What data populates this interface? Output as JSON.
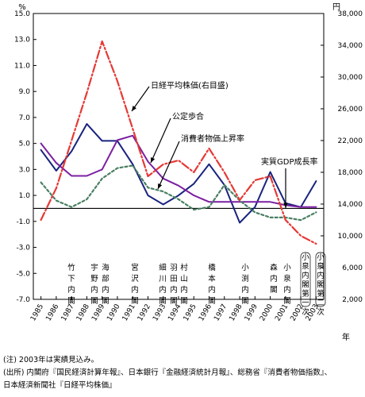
{
  "chart_data": {
    "type": "line",
    "left_unit": "%",
    "right_unit": "円",
    "x_suffix": "年",
    "x": [
      "1985",
      "1986",
      "1987",
      "1988",
      "1989",
      "1990",
      "1991",
      "1992",
      "1993",
      "1994",
      "1995",
      "1996",
      "1997",
      "1998",
      "1999",
      "2000",
      "2001",
      "2002",
      "2003"
    ],
    "left_axis": {
      "ylim": [
        -7.0,
        15.0
      ],
      "ticks": [
        "15.0",
        "13.0",
        "11.0",
        "9.0",
        "7.0",
        "5.0",
        "3.0",
        "1.0",
        "-1.0",
        "-3.0",
        "-5.0",
        "-7.0"
      ]
    },
    "right_axis": {
      "ylim": [
        2000,
        38000
      ],
      "ticks": [
        "38,000",
        "34,000",
        "30,000",
        "26,000",
        "22,000",
        "18,000",
        "14,000",
        "10,000",
        "6,000",
        "2,000"
      ]
    },
    "series": [
      {
        "name": "実質GDP成長率",
        "axis": "left",
        "color": "#1a237e",
        "style": "solid",
        "values": [
          4.5,
          2.9,
          4.4,
          6.5,
          5.2,
          5.2,
          3.4,
          1.0,
          0.3,
          1.0,
          1.9,
          3.4,
          1.8,
          -1.1,
          0.1,
          2.8,
          0.4,
          0.1,
          2.1
        ]
      },
      {
        "name": "公定歩合",
        "axis": "left",
        "color": "#7b1fa2",
        "style": "solid",
        "values": [
          5.0,
          3.5,
          2.5,
          2.5,
          3.0,
          5.25,
          5.6,
          3.6,
          2.3,
          1.75,
          1.0,
          0.5,
          0.5,
          0.5,
          0.5,
          0.5,
          0.25,
          0.1,
          0.1
        ]
      },
      {
        "name": "消費者物価上昇率",
        "axis": "left",
        "color": "#4a7f63",
        "style": "dotted",
        "values": [
          2.0,
          0.6,
          0.1,
          0.7,
          2.3,
          3.1,
          3.3,
          1.6,
          1.3,
          0.7,
          -0.1,
          0.1,
          1.8,
          0.6,
          -0.3,
          -0.7,
          -0.7,
          -0.9,
          -0.3
        ]
      },
      {
        "name": "日経平均株価(右目盛)",
        "axis": "right",
        "color": "#e53935",
        "style": "dashdot",
        "values": [
          12000,
          16000,
          22000,
          28000,
          34500,
          29500,
          23500,
          17500,
          19000,
          19500,
          18000,
          21000,
          18000,
          14500,
          17000,
          17500,
          12000,
          10000,
          9000
        ]
      }
    ],
    "annotations": [
      "日経平均株価(右目盛)",
      "公定歩合",
      "消費者物価上昇率",
      "実質GDP成長率"
    ],
    "cabinets": [
      {
        "year": "1986",
        "label": "竹下内閣"
      },
      {
        "year": "1988",
        "label": "宇野内閣"
      },
      {
        "year": "1989",
        "label": "海部内閣"
      },
      {
        "year": "1991",
        "label": "宮沢内閣"
      },
      {
        "year": "1993",
        "label": "細川内閣"
      },
      {
        "year": "1994",
        "label": "羽田内閣"
      },
      {
        "year": "1994",
        "label": "村山内閣"
      },
      {
        "year": "1996",
        "label": "橋本内閣"
      },
      {
        "year": "1998",
        "label": "小渕内閣"
      },
      {
        "year": "2000",
        "label": "森内閣"
      },
      {
        "year": "2001",
        "label": "小泉内閣"
      },
      {
        "year": "2002",
        "label": "(第一次)小泉内閣"
      },
      {
        "year": "2003",
        "label": "(第二次)小泉内閣"
      }
    ]
  },
  "notes": {
    "note": "(注) 2003年は実績見込み。",
    "source_1": "(出所) 内閣府『国民経済計算年報』、日本銀行『金融経済統計月報』、総務省『消費者物価指数』、",
    "source_2": "日本経済新聞社『日経平均株価』"
  }
}
